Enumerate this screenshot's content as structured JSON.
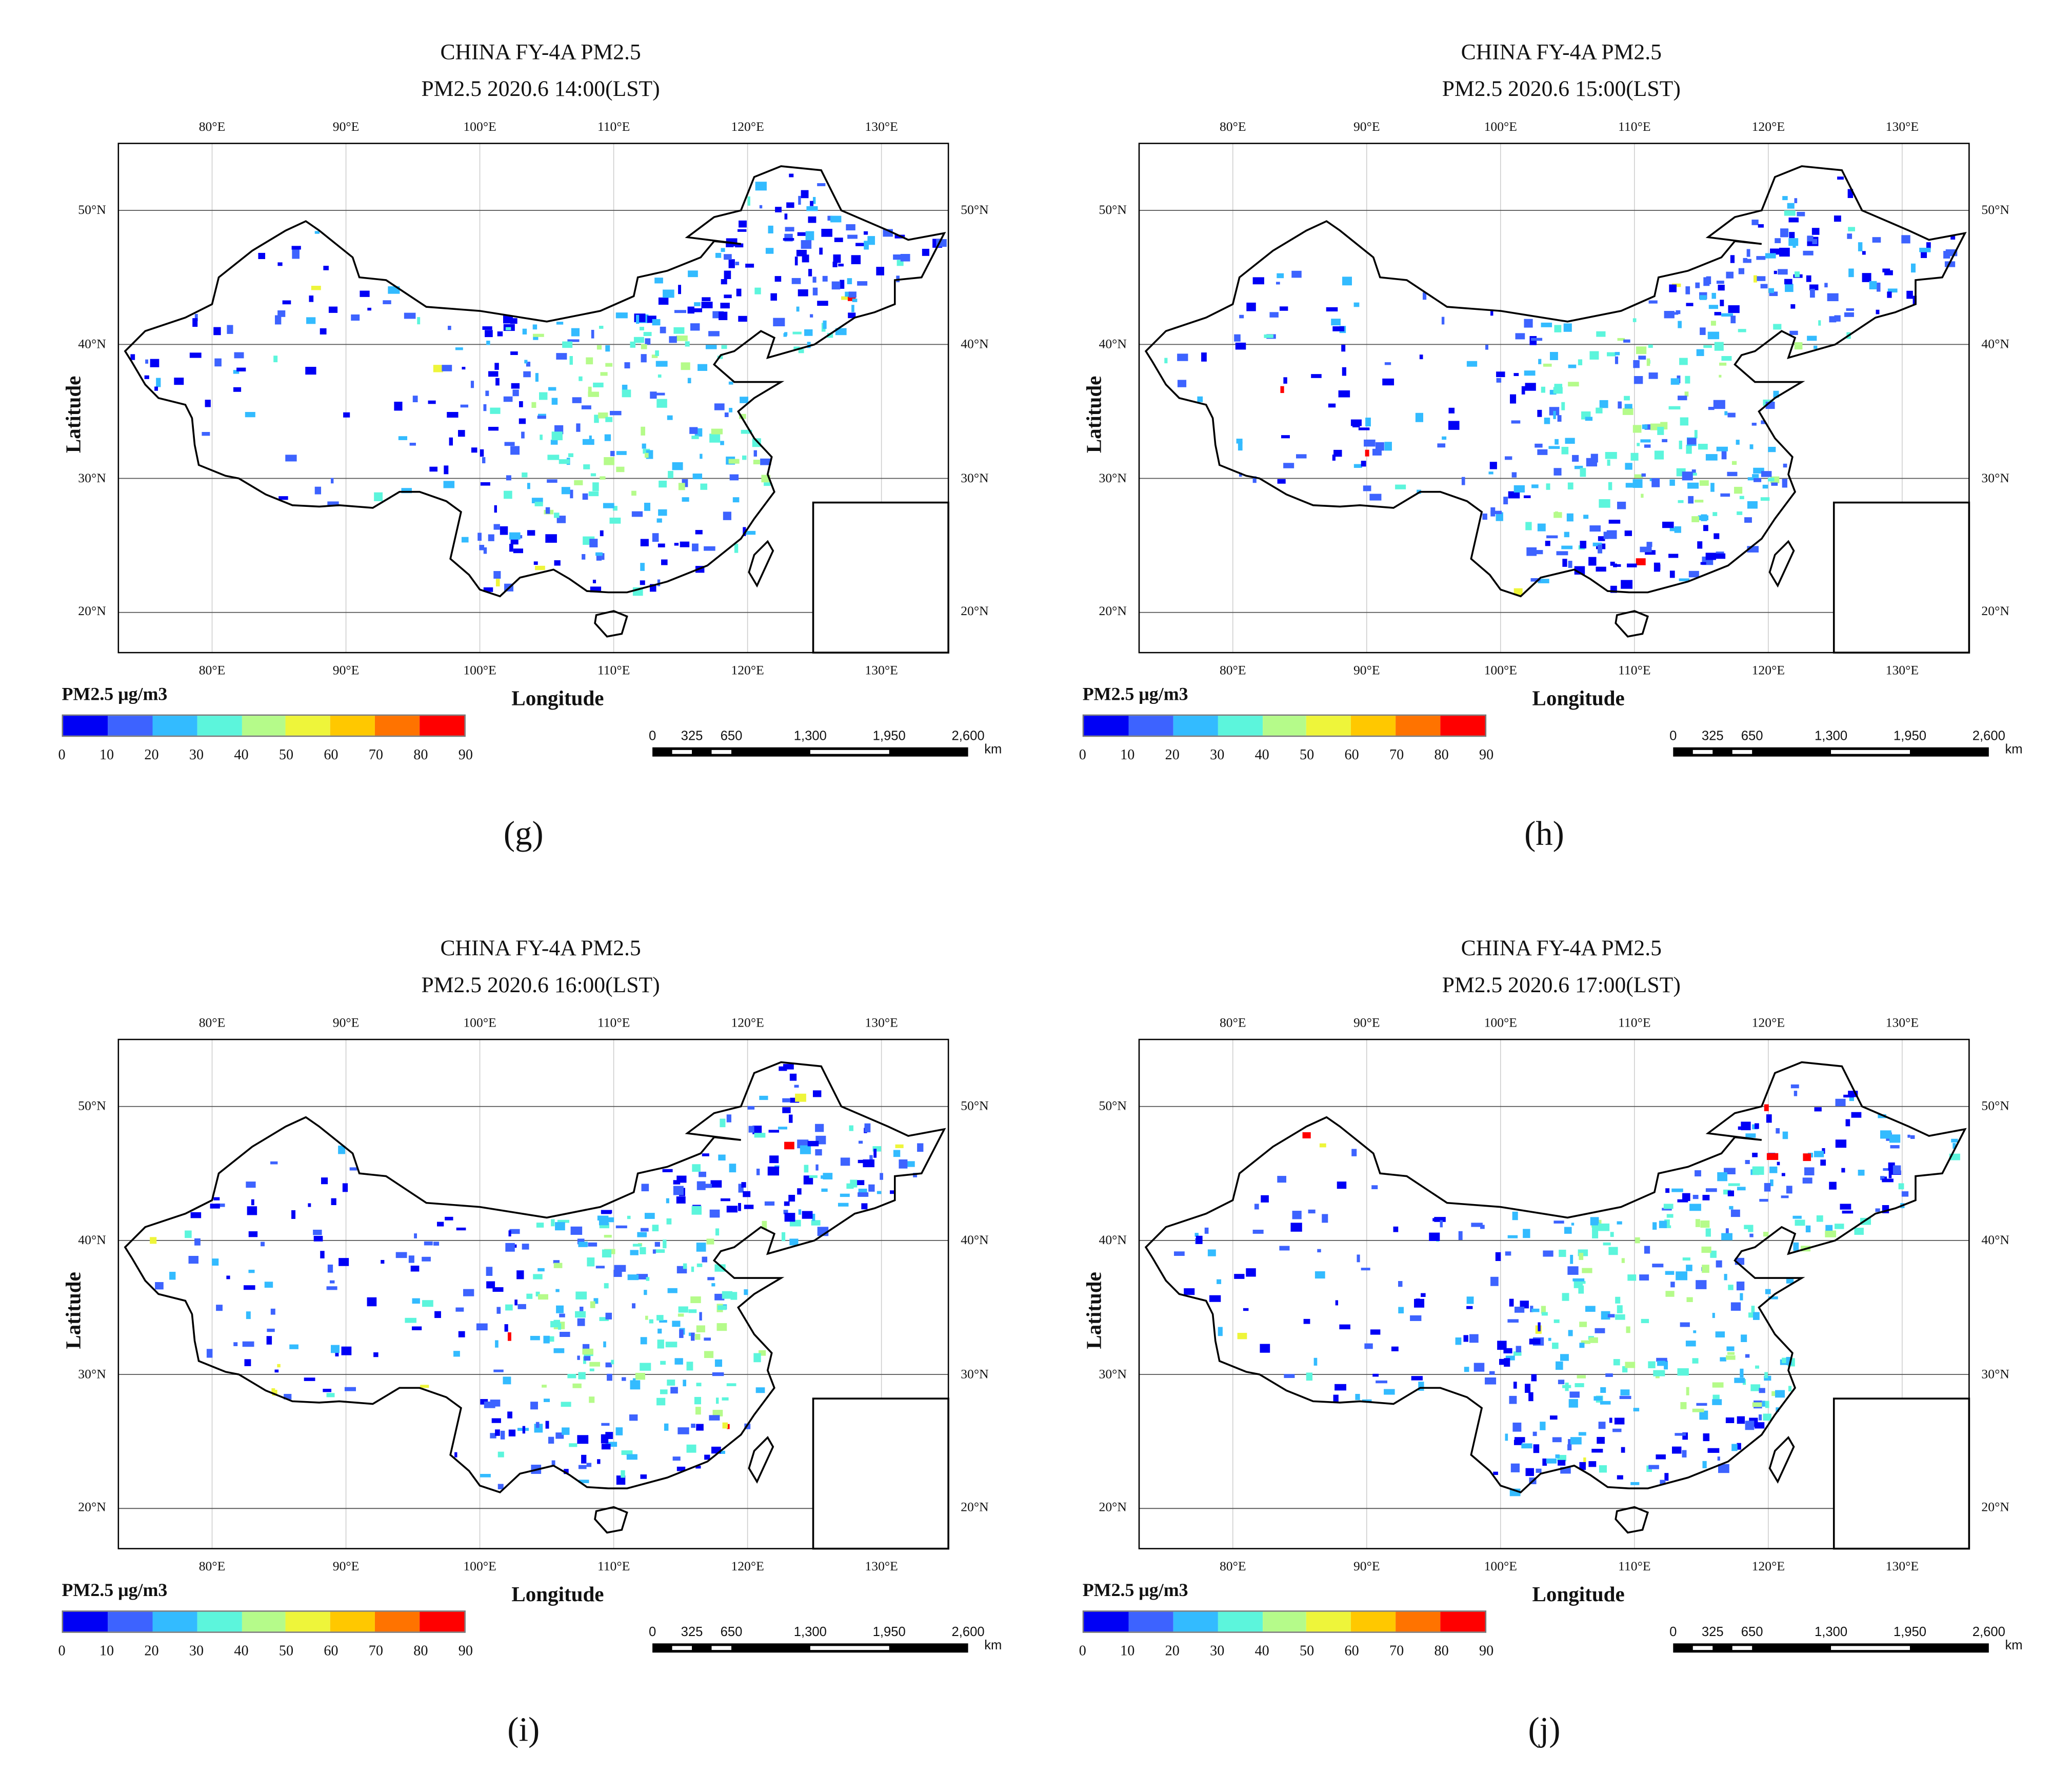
{
  "chart_data": {
    "type": "heatmap",
    "map_type": "gridded PM2.5 concentration map of China",
    "xlabel": "Longitude",
    "ylabel": "Latitude",
    "xlim": [
      73,
      135
    ],
    "ylim": [
      17,
      55
    ],
    "x_ticks": [
      "80°E",
      "90°E",
      "100°E",
      "110°E",
      "120°E",
      "130°E"
    ],
    "x_tick_values": [
      80,
      90,
      100,
      110,
      120,
      130
    ],
    "y_ticks": [
      "50°N",
      "40°N",
      "30°N",
      "20°N"
    ],
    "y_tick_values": [
      50,
      40,
      30,
      20
    ],
    "grid": true,
    "colorbar": {
      "title": "PM2.5 μg/m3",
      "ticks": [
        "0",
        "10",
        "20",
        "30",
        "40",
        "50",
        "60",
        "70",
        "80",
        "90"
      ],
      "colors": [
        "#0000f5",
        "#3d63ff",
        "#33bbff",
        "#5cf5dc",
        "#b5fb8a",
        "#eef53a",
        "#ffc800",
        "#ff7300",
        "#ff0000"
      ],
      "placement": "bottom-left"
    },
    "scale_bar": {
      "labels": [
        "0",
        "325",
        "650",
        "1,300",
        "1,950",
        "2,600"
      ],
      "unit": "km",
      "placement": "bottom-right"
    },
    "panels": [
      {
        "label": "(g)",
        "title": "CHINA FY-4A  PM2.5",
        "subtitle": "PM2.5 2020.6 14:00(LST)"
      },
      {
        "label": "(h)",
        "title": "CHINA FY-4A  PM2.5",
        "subtitle": "PM2.5 2020.6 15:00(LST)"
      },
      {
        "label": "(i)",
        "title": "CHINA FY-4A  PM2.5",
        "subtitle": "PM2.5 2020.6 16:00(LST)"
      },
      {
        "label": "(j)",
        "title": "CHINA FY-4A  PM2.5",
        "subtitle": "PM2.5 2020.6 17:00(LST)"
      }
    ]
  }
}
